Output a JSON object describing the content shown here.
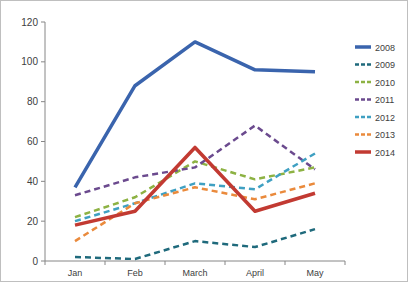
{
  "chart_data": {
    "type": "line",
    "categories": [
      "Jan",
      "Feb",
      "March",
      "April",
      "May"
    ],
    "series": [
      {
        "name": "2008",
        "color": "#3a64ad",
        "line_style": "solid",
        "values": [
          37,
          88,
          110,
          96,
          95
        ]
      },
      {
        "name": "2009",
        "color": "#1f6a7c",
        "line_style": "dashed",
        "values": [
          2,
          1,
          10,
          7,
          16
        ]
      },
      {
        "name": "2010",
        "color": "#8db243",
        "line_style": "dashed",
        "values": [
          22,
          32,
          50,
          41,
          47
        ]
      },
      {
        "name": "2011",
        "color": "#6b4a8e",
        "line_style": "dashed",
        "values": [
          33,
          42,
          47,
          68,
          46
        ]
      },
      {
        "name": "2012",
        "color": "#3fa0c2",
        "line_style": "dashed",
        "values": [
          20,
          29,
          39,
          36,
          54
        ]
      },
      {
        "name": "2013",
        "color": "#ea8a3c",
        "line_style": "dashed",
        "values": [
          10,
          29,
          37,
          31,
          39
        ]
      },
      {
        "name": "2014",
        "color": "#c23a32",
        "line_style": "solid",
        "values": [
          18,
          25,
          57,
          25,
          34
        ]
      }
    ],
    "ylim": [
      0,
      120
    ],
    "yticks": [
      0,
      20,
      40,
      60,
      80,
      100,
      120
    ],
    "grid": false,
    "legend": "right"
  }
}
